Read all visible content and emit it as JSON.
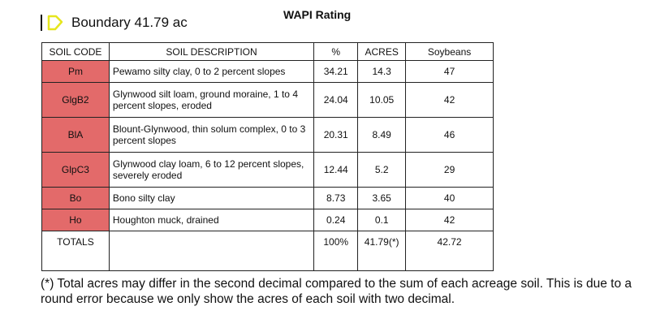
{
  "header": {
    "boundary_label": "Boundary 41.79 ac",
    "title": "WAPI Rating"
  },
  "colors": {
    "soil_code_fill": "#e36a6a",
    "boundary_icon": "#e6e61e"
  },
  "table": {
    "columns": [
      "SOIL CODE",
      "SOIL DESCRIPTION",
      "%",
      "ACRES",
      "Soybeans"
    ],
    "rows": [
      {
        "code": "Pm",
        "description": "Pewamo silty clay, 0 to 2 percent slopes",
        "percent": "34.21",
        "acres": "14.3",
        "soybeans": "47"
      },
      {
        "code": "GlgB2",
        "description": "Glynwood silt loam, ground moraine, 1 to 4 percent slopes, eroded",
        "percent": "24.04",
        "acres": "10.05",
        "soybeans": "42"
      },
      {
        "code": "BlA",
        "description": "Blount-Glynwood, thin solum complex, 0 to 3 percent slopes",
        "percent": "20.31",
        "acres": "8.49",
        "soybeans": "46"
      },
      {
        "code": "GlpC3",
        "description": "Glynwood clay loam, 6 to 12 percent slopes, severely eroded",
        "percent": "12.44",
        "acres": "5.2",
        "soybeans": "29"
      },
      {
        "code": "Bo",
        "description": "Bono silty clay",
        "percent": "8.73",
        "acres": "3.65",
        "soybeans": "40"
      },
      {
        "code": "Ho",
        "description": "Houghton muck, drained",
        "percent": "0.24",
        "acres": "0.1",
        "soybeans": "42"
      }
    ],
    "totals": {
      "label": "TOTALS",
      "description": "",
      "percent": "100%",
      "acres": "41.79(*)",
      "soybeans": "42.72"
    }
  },
  "footnote": "(*) Total acres may differ in the second decimal compared to the sum of each acreage soil. This is due to a round error because we only show the acres of each soil with two decimal."
}
